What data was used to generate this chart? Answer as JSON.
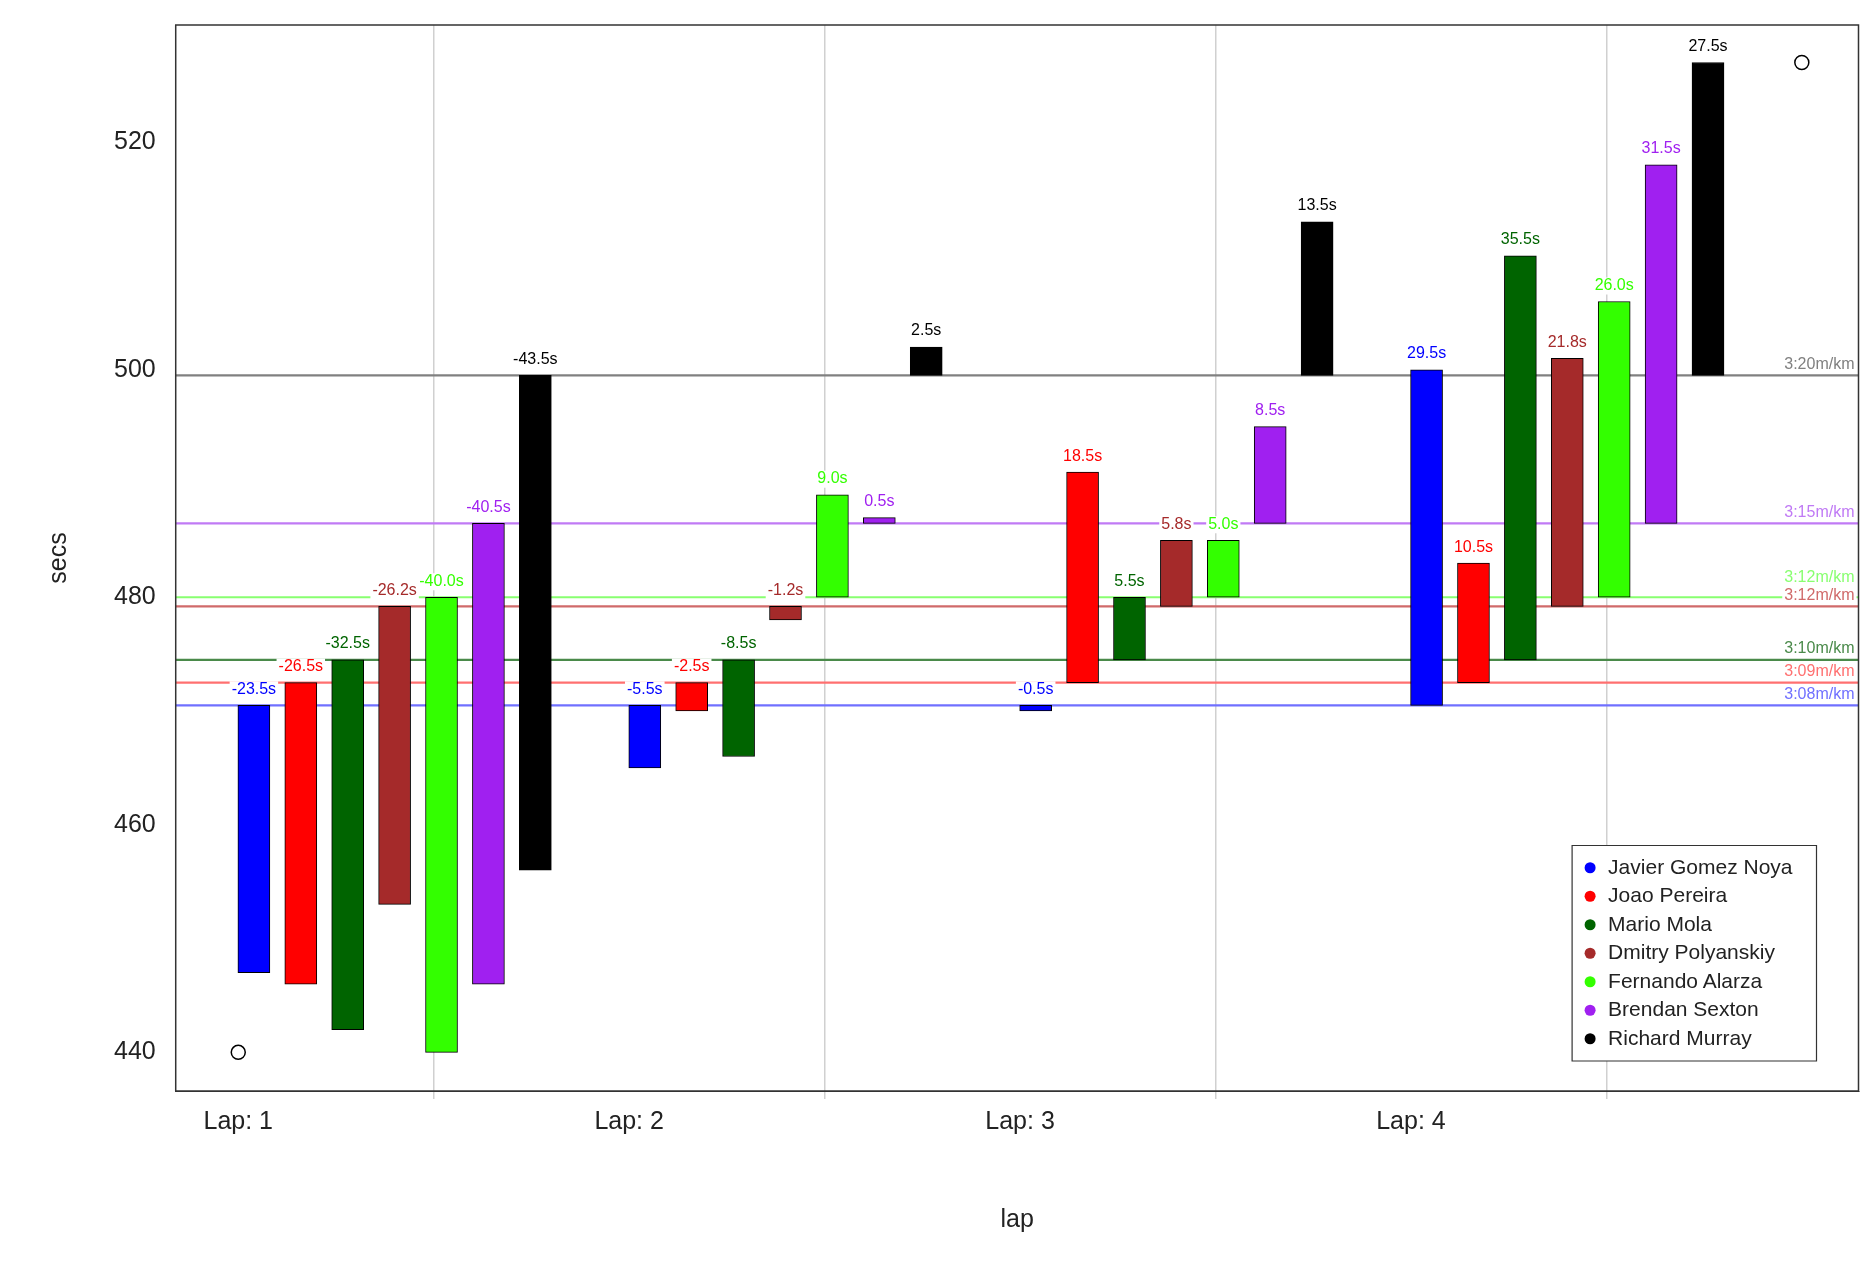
{
  "chart_data": {
    "type": "bar",
    "xlabel": "lap",
    "ylabel": "secs",
    "xlim": [
      0.84,
      5.145
    ],
    "xticks": [
      {
        "value": 1,
        "label": "Lap: 1"
      },
      {
        "value": 2,
        "label": "Lap: 2"
      },
      {
        "value": 3,
        "label": "Lap: 3"
      },
      {
        "value": 4,
        "label": "Lap: 4"
      }
    ],
    "ylim": [
      436.6,
      530.3
    ],
    "yticks": [
      440,
      460,
      480,
      500,
      520
    ],
    "grid": "x",
    "legend": "bottom right",
    "marker": "circle",
    "series": [
      {
        "name": "Javier Gomez Noya",
        "color": "#0000ff",
        "x": [
          1.04,
          2.04,
          3.04,
          4.04
        ],
        "base": [
          470.5,
          470.5,
          470.5,
          470.5
        ],
        "values": [
          -23.5,
          -5.5,
          -0.5,
          29.5
        ],
        "value_labels": [
          "-23.5s",
          "-5.5s",
          "-0.5s",
          "29.5s"
        ]
      },
      {
        "name": "Joao Pereira",
        "color": "#ff0000",
        "x": [
          1.16,
          2.16,
          3.16,
          4.16
        ],
        "base": [
          472.5,
          472.5,
          472.5,
          472.5
        ],
        "values": [
          -26.5,
          -2.5,
          18.5,
          10.5
        ],
        "value_labels": [
          "-26.5s",
          "-2.5s",
          "18.5s",
          "10.5s"
        ]
      },
      {
        "name": "Mario Mola",
        "color": "#006400",
        "x": [
          1.28,
          2.28,
          3.28,
          4.28
        ],
        "base": [
          474.5,
          474.5,
          474.5,
          474.5
        ],
        "values": [
          -32.5,
          -8.5,
          5.5,
          35.5
        ],
        "value_labels": [
          "-32.5s",
          "-8.5s",
          "5.5s",
          "35.5s"
        ]
      },
      {
        "name": "Dmitry Polyanskiy",
        "color": "#a52a2a",
        "x": [
          1.4,
          2.4,
          3.4,
          4.4
        ],
        "base": [
          479.2,
          479.2,
          479.2,
          479.2
        ],
        "values": [
          -26.2,
          -1.2,
          5.8,
          21.8
        ],
        "value_labels": [
          "-26.2s",
          "-1.2s",
          "5.8s",
          "21.8s"
        ]
      },
      {
        "name": "Fernando Alarza",
        "color": "#33ff00",
        "x": [
          1.52,
          2.52,
          3.52,
          4.52
        ],
        "base": [
          480,
          480,
          480,
          480
        ],
        "values": [
          -40.0,
          9.0,
          5.0,
          26.0
        ],
        "value_labels": [
          "-40.0s",
          "9.0s",
          "5.0s",
          "26.0s"
        ]
      },
      {
        "name": "Brendan Sexton",
        "color": "#a020f0",
        "x": [
          1.64,
          2.64,
          3.64,
          4.64
        ],
        "base": [
          486.5,
          486.5,
          486.5,
          486.5
        ],
        "values": [
          -40.5,
          0.5,
          8.5,
          31.5
        ],
        "value_labels": [
          "-40.5s",
          "0.5s",
          "8.5s",
          "31.5s"
        ]
      },
      {
        "name": "Richard Murray",
        "color": "#000000",
        "x": [
          1.76,
          2.76,
          3.76,
          4.76
        ],
        "base": [
          499.5,
          499.5,
          499.5,
          499.5
        ],
        "values": [
          -43.5,
          2.5,
          13.5,
          27.5
        ],
        "value_labels": [
          "-43.5s",
          "2.5s",
          "13.5s",
          "27.5s"
        ]
      },
      {
        "type": "scatter",
        "color": "#000000",
        "x": [
          1,
          5
        ],
        "values": [
          440,
          527
        ]
      }
    ],
    "ref_lines": [
      {
        "axis": "y",
        "value": 470.5,
        "color": "#7070ff"
      },
      {
        "axis": "y",
        "value": 472.5,
        "color": "#ff7070"
      },
      {
        "axis": "y",
        "value": 474.5,
        "color": "#4a8a4a"
      },
      {
        "axis": "y",
        "value": 479.2,
        "color": "#d06a6a"
      },
      {
        "axis": "y",
        "value": 480,
        "color": "#88ff70"
      },
      {
        "axis": "y",
        "value": 486.5,
        "color": "#c07af5"
      },
      {
        "axis": "y",
        "value": 499.5,
        "color": "#808080"
      }
    ],
    "annotations": [
      {
        "text": "3:08m/km",
        "y": 470.5
      },
      {
        "text": "3:09m/km",
        "y": 472.5
      },
      {
        "text": "3:10m/km",
        "y": 474.5
      },
      {
        "text": "3:12m/km",
        "y": 479.2
      },
      {
        "text": "3:12m/km",
        "y": 480
      },
      {
        "text": "3:15m/km",
        "y": 486.5
      },
      {
        "text": "3:20m/km",
        "y": 499.5
      }
    ]
  }
}
